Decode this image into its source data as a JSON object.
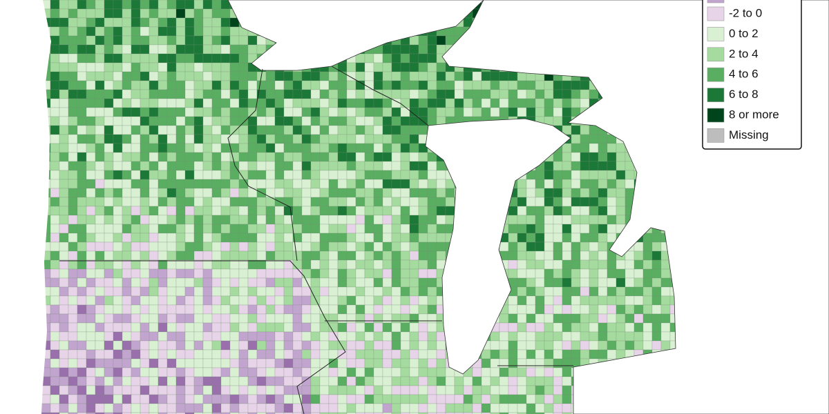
{
  "legend": {
    "items": [
      {
        "label": "-2 to 0",
        "color": "#e7d4e8"
      },
      {
        "label": "0 to 2",
        "color": "#d9f0d3"
      },
      {
        "label": "2 to 4",
        "color": "#a6dba0"
      },
      {
        "label": "4 to 6",
        "color": "#5aae61"
      },
      {
        "label": "6 to 8",
        "color": "#1b7837"
      },
      {
        "label": "8 or more",
        "color": "#00441b"
      },
      {
        "label": "Missing",
        "color": "#bdbdbd"
      }
    ]
  }
}
